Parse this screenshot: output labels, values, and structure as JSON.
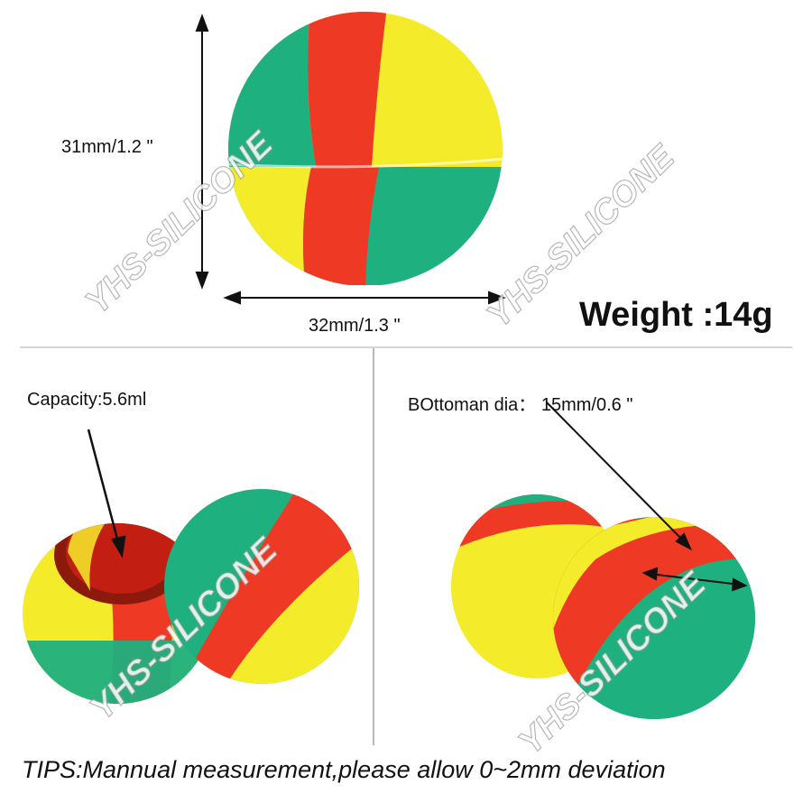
{
  "dimensions": {
    "height_label": "31mm/1.2 \"",
    "width_label": "32mm/1.3 \"",
    "weight_label": "Weight :14g"
  },
  "capacity_label": "Capacity:5.6ml",
  "bottom_dia_label": "BOttoman dia： 15mm/0.6 \"",
  "tips": "TIPS:Mannual measurement,please allow 0~2mm deviation",
  "watermark": "YHS-SILICONE",
  "colors": {
    "green": "#1fb07f",
    "red": "#ee3a24",
    "yellow": "#f4ec2a",
    "background": "#ffffff"
  }
}
